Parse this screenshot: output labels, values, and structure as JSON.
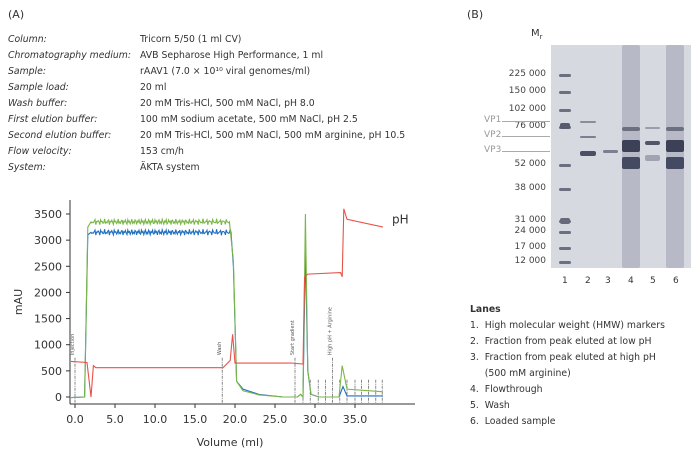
{
  "panel_a": {
    "label": "(A)",
    "conditions": [
      {
        "key": "Column:",
        "value": "Tricorn 5/50 (1 ml CV)"
      },
      {
        "key": "Chromatography medium:",
        "value": "AVB Sepharose High Performance, 1 ml"
      },
      {
        "key": "Sample:",
        "value": "rAAV1 (7.0 × 10¹⁰ viral genomes/ml)"
      },
      {
        "key": "Sample load:",
        "value": "20 ml"
      },
      {
        "key": "Wash buffer:",
        "value": "20 mM Tris-HCl, 500 mM NaCl, pH 8.0"
      },
      {
        "key": "First elution buffer:",
        "value": "100 mM sodium acetate, 500 mM NaCl, pH 2.5"
      },
      {
        "key": "Second elution buffer:",
        "value": "20 mM Tris-HCl, 500 mM NaCl, 500 mM arginine, pH 10.5"
      },
      {
        "key": "Flow velocity:",
        "value": "153 cm/h"
      },
      {
        "key": "System:",
        "value": "ÄKTA system"
      }
    ]
  },
  "chart_data": {
    "type": "line",
    "xlabel": "Volume (ml)",
    "ylabel": "mAU",
    "xlim": [
      -0.5,
      39
    ],
    "ylim": [
      -100,
      3600
    ],
    "xticks": [
      "0.0",
      "5.0",
      "10.0",
      "15.0",
      "20.0",
      "25.0",
      "30.0",
      "35.0"
    ],
    "yticks": [
      "0",
      "500",
      "1000",
      "1500",
      "2000",
      "2500",
      "3000",
      "3500"
    ],
    "grid": false,
    "series": [
      {
        "color": "#1f6fc0",
        "points": [
          [
            -0.5,
            -10
          ],
          [
            1.2,
            0
          ],
          [
            1.6,
            3100
          ],
          [
            2,
            3150
          ],
          [
            19.5,
            3150
          ],
          [
            19.8,
            2500
          ],
          [
            20.2,
            300
          ],
          [
            21,
            150
          ],
          [
            23,
            50
          ],
          [
            26,
            0
          ],
          [
            27.8,
            0
          ],
          [
            28.2,
            50
          ],
          [
            28.5,
            0
          ],
          [
            28.8,
            2800
          ],
          [
            29.1,
            500
          ],
          [
            29.5,
            50
          ],
          [
            30.5,
            0
          ],
          [
            33,
            0
          ],
          [
            33.5,
            200
          ],
          [
            34,
            20
          ],
          [
            38.5,
            20
          ]
        ]
      },
      {
        "color": "#7ab648",
        "points": [
          [
            -0.5,
            -10
          ],
          [
            1.2,
            0
          ],
          [
            1.6,
            3250
          ],
          [
            2,
            3350
          ],
          [
            19.3,
            3350
          ],
          [
            19.8,
            2600
          ],
          [
            20.2,
            300
          ],
          [
            21,
            120
          ],
          [
            23,
            40
          ],
          [
            26,
            0
          ],
          [
            27.8,
            0
          ],
          [
            28.2,
            50
          ],
          [
            28.5,
            0
          ],
          [
            28.8,
            3500
          ],
          [
            29.1,
            500
          ],
          [
            29.5,
            50
          ],
          [
            30.5,
            0
          ],
          [
            33,
            0
          ],
          [
            33.4,
            600
          ],
          [
            34,
            150
          ],
          [
            38.5,
            100
          ]
        ]
      },
      {
        "name": "pH",
        "color": "#e8524a",
        "points": [
          [
            -0.5,
            680
          ],
          [
            1.5,
            660
          ],
          [
            2,
            0
          ],
          [
            2.3,
            600
          ],
          [
            2.6,
            560
          ],
          [
            18.5,
            560
          ],
          [
            19.4,
            700
          ],
          [
            19.7,
            1200
          ],
          [
            20,
            650
          ],
          [
            27,
            650
          ],
          [
            28.5,
            630
          ],
          [
            28.7,
            2300
          ],
          [
            29.1,
            2350
          ],
          [
            33.2,
            2380
          ],
          [
            33.4,
            2300
          ],
          [
            33.6,
            3600
          ],
          [
            34,
            3400
          ],
          [
            38.5,
            3250
          ]
        ]
      }
    ],
    "annotations": [
      {
        "x": 0,
        "text": "Injection"
      },
      {
        "x": 18.4,
        "text": "Wash"
      },
      {
        "x": 27.5,
        "text": "Start gradient"
      },
      {
        "x": 32.2,
        "text": "High pH + Arginine"
      }
    ],
    "fraction_marks": [
      28.5,
      29.4,
      30.4,
      31.3,
      33.1,
      34,
      35,
      35.8,
      36.7,
      37.6,
      38.4
    ]
  },
  "panel_b": {
    "label": "(B)",
    "mr_label": "M",
    "mr_sub": "r",
    "markers": [
      "225 000",
      "150 000",
      "102 000",
      "76 000",
      "52 000",
      "38 000",
      "31 000",
      "24 000",
      "17 000",
      "12 000"
    ],
    "vp": [
      "VP1",
      "VP2",
      "VP3"
    ],
    "lane_numbers": [
      "1",
      "2",
      "3",
      "4",
      "5",
      "6"
    ],
    "lanes_title": "Lanes",
    "lanes": [
      "1.  High molecular weight (HMW) markers",
      "2.  Fraction from peak eluted at low pH",
      "3.  Fraction from peak eluted at high pH",
      "     (500 mM arginine)",
      "4.  Flowthrough",
      "5.  Wash",
      "6.  Loaded sample"
    ]
  }
}
